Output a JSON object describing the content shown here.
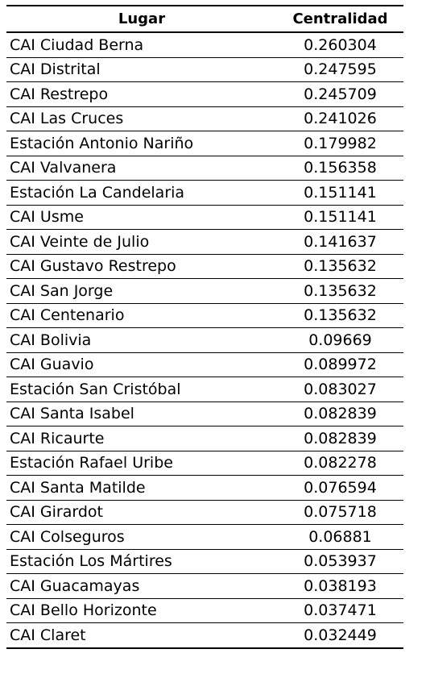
{
  "table": {
    "headers": [
      "Lugar",
      "Centralidad"
    ],
    "rows": [
      [
        "CAI Ciudad Berna",
        "0.260304"
      ],
      [
        "CAI Distrital",
        "0.247595"
      ],
      [
        "CAI Restrepo",
        "0.245709"
      ],
      [
        "CAI Las Cruces",
        "0.241026"
      ],
      [
        "Estación Antonio Nariño",
        "0.179982"
      ],
      [
        "CAI Valvanera",
        "0.156358"
      ],
      [
        "Estación La Candelaria",
        "0.151141"
      ],
      [
        "CAI Usme",
        "0.151141"
      ],
      [
        "CAI Veinte de Julio",
        "0.141637"
      ],
      [
        "CAI Gustavo Restrepo",
        "0.135632"
      ],
      [
        "CAI San Jorge",
        "0.135632"
      ],
      [
        "CAI Centenario",
        "0.135632"
      ],
      [
        "CAI Bolivia",
        "0.09669"
      ],
      [
        "CAI Guavio",
        "0.089972"
      ],
      [
        "Estación San Cristóbal",
        "0.083027"
      ],
      [
        "CAI Santa Isabel",
        "0.082839"
      ],
      [
        "CAI Ricaurte",
        "0.082839"
      ],
      [
        "Estación Rafael Uribe",
        "0.082278"
      ],
      [
        "CAI Santa Matilde",
        "0.076594"
      ],
      [
        "CAI Girardot",
        "0.075718"
      ],
      [
        "CAI Colseguros",
        "0.06881"
      ],
      [
        "Estación Los Mártires",
        "0.053937"
      ],
      [
        "CAI Guacamayas",
        "0.038193"
      ],
      [
        "CAI Bello Horizonte",
        "0.037471"
      ],
      [
        "CAI Claret",
        "0.032449"
      ]
    ]
  }
}
